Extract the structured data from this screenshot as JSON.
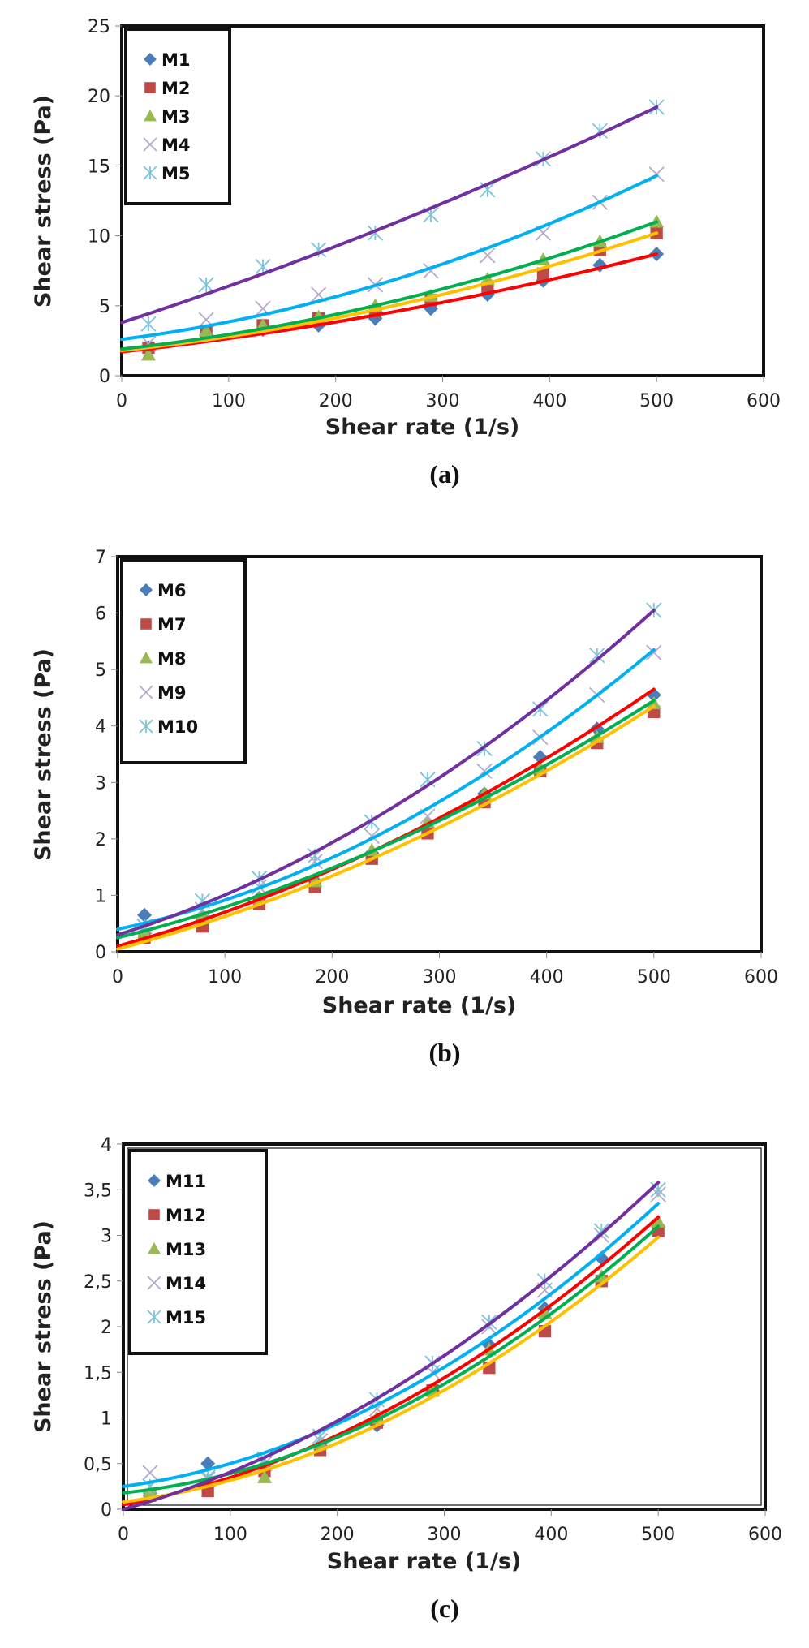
{
  "chart_data": [
    {
      "type": "scatter",
      "panel_label": "(a)",
      "xlabel": "Shear rate (1/s)",
      "ylabel": "Shear stress (Pa)",
      "xlim": [
        0,
        600
      ],
      "ylim": [
        0,
        25
      ],
      "xticks": [
        "0",
        "100",
        "200",
        "300",
        "400",
        "500",
        "600"
      ],
      "yticks": [
        "0",
        "5",
        "10",
        "15",
        "20",
        "25"
      ],
      "grid": false,
      "legend_position": "top-left",
      "x": [
        25,
        79,
        132,
        184,
        237,
        289,
        342,
        394,
        447,
        500
      ],
      "series": [
        {
          "name": "M1",
          "marker": "diamond",
          "color": "#4a7ebb",
          "fit_color": "#ff0000",
          "values": [
            2.0,
            2.9,
            3.3,
            3.6,
            4.1,
            4.8,
            5.8,
            6.8,
            7.9,
            8.7
          ],
          "fit": [
            1.7,
            8.7
          ]
        },
        {
          "name": "M2",
          "marker": "square",
          "color": "#be4b48",
          "fit_color": "#ffc000",
          "values": [
            2.0,
            3.1,
            3.6,
            4.1,
            4.6,
            5.4,
            6.3,
            7.3,
            9.0,
            10.2
          ],
          "fit": [
            1.8,
            10.2
          ]
        },
        {
          "name": "M3",
          "marker": "triangle",
          "color": "#98b954",
          "fit_color": "#00b050",
          "values": [
            1.5,
            3.2,
            3.6,
            4.2,
            5.0,
            5.7,
            6.9,
            8.3,
            9.6,
            11.0
          ],
          "fit": [
            1.9,
            11.0
          ]
        },
        {
          "name": "M4",
          "marker": "x",
          "color": "#b7a9cc",
          "fit_color": "#00b0f0",
          "values": [
            2.3,
            4.0,
            4.8,
            5.8,
            6.5,
            7.5,
            8.6,
            10.2,
            12.4,
            14.4
          ],
          "fit": [
            2.6,
            14.3
          ]
        },
        {
          "name": "M5",
          "marker": "asterisk",
          "color": "#7ec4d8",
          "fit_color": "#7030a0",
          "values": [
            3.7,
            6.5,
            7.8,
            9.0,
            10.2,
            11.5,
            13.3,
            15.5,
            17.5,
            19.2
          ],
          "fit": [
            3.8,
            19.2
          ]
        }
      ]
    },
    {
      "type": "scatter",
      "panel_label": "(b)",
      "xlabel": "Shear rate (1/s)",
      "ylabel": "Shear stress (Pa)",
      "xlim": [
        0,
        600
      ],
      "ylim": [
        0,
        7
      ],
      "xticks": [
        "0",
        "100",
        "200",
        "300",
        "400",
        "500",
        "600"
      ],
      "yticks": [
        "0",
        "1",
        "2",
        "3",
        "4",
        "5",
        "6",
        "7"
      ],
      "grid": false,
      "legend_position": "top-left",
      "x": [
        25,
        79,
        132,
        184,
        237,
        289,
        342,
        394,
        447,
        500
      ],
      "series": [
        {
          "name": "M6",
          "marker": "diamond",
          "color": "#4a7ebb",
          "fit_color": "#ff0000",
          "values": [
            0.65,
            0.6,
            0.95,
            1.25,
            1.75,
            2.2,
            2.8,
            3.45,
            3.95,
            4.55
          ],
          "fit": [
            0.1,
            4.65
          ]
        },
        {
          "name": "M7",
          "marker": "square",
          "color": "#be4b48",
          "fit_color": "#ffc000",
          "values": [
            0.25,
            0.45,
            0.85,
            1.15,
            1.65,
            2.1,
            2.65,
            3.2,
            3.7,
            4.25
          ],
          "fit": [
            0.05,
            4.35
          ]
        },
        {
          "name": "M8",
          "marker": "triangle",
          "color": "#98b954",
          "fit_color": "#00b050",
          "values": [
            0.35,
            0.65,
            0.95,
            1.25,
            1.8,
            2.3,
            2.8,
            3.25,
            3.8,
            4.4
          ],
          "fit": [
            0.25,
            4.45
          ]
        },
        {
          "name": "M9",
          "marker": "x",
          "color": "#b7a9cc",
          "fit_color": "#00b0f0",
          "values": [
            0.45,
            0.75,
            1.15,
            1.6,
            2.05,
            2.4,
            3.2,
            3.8,
            4.55,
            5.3
          ],
          "fit": [
            0.4,
            5.35
          ]
        },
        {
          "name": "M10",
          "marker": "asterisk",
          "color": "#7ec4d8",
          "fit_color": "#7030a0",
          "values": [
            0.45,
            0.9,
            1.3,
            1.7,
            2.3,
            3.05,
            3.6,
            4.3,
            5.25,
            6.05
          ],
          "fit": [
            0.3,
            6.05
          ]
        }
      ]
    },
    {
      "type": "scatter",
      "panel_label": "(c)",
      "xlabel": "Shear rate (1/s)",
      "ylabel": "Shear stress (Pa)",
      "xlim": [
        0,
        600
      ],
      "ylim": [
        0,
        4
      ],
      "xticks": [
        "0",
        "100",
        "200",
        "300",
        "400",
        "500",
        "600"
      ],
      "yticks": [
        "0",
        "0,5",
        "1",
        "1,5",
        "2",
        "2,5",
        "3",
        "3,5",
        "4"
      ],
      "grid": false,
      "legend_position": "top-left",
      "x": [
        25,
        79,
        132,
        184,
        237,
        289,
        342,
        394,
        447,
        500
      ],
      "series": [
        {
          "name": "M11",
          "marker": "diamond",
          "color": "#4a7ebb",
          "fit_color": "#ff0000",
          "values": [
            0.15,
            0.5,
            0.45,
            0.7,
            0.92,
            1.3,
            1.8,
            2.2,
            2.75,
            3.1
          ],
          "fit": [
            0.05,
            3.2
          ]
        },
        {
          "name": "M12",
          "marker": "square",
          "color": "#be4b48",
          "fit_color": "#ffc000",
          "values": [
            0.15,
            0.2,
            0.42,
            0.65,
            0.95,
            1.3,
            1.55,
            1.95,
            2.5,
            3.05
          ],
          "fit": [
            0.08,
            2.98
          ]
        },
        {
          "name": "M13",
          "marker": "triangle",
          "color": "#98b954",
          "fit_color": "#00b050",
          "values": [
            0.2,
            0.32,
            0.35,
            0.72,
            1.0,
            1.3,
            1.75,
            2.15,
            2.55,
            3.15
          ],
          "fit": [
            0.18,
            3.1
          ]
        },
        {
          "name": "M14",
          "marker": "x",
          "color": "#b7a9cc",
          "fit_color": "#00b0f0",
          "values": [
            0.4,
            0.33,
            0.5,
            0.75,
            1.1,
            1.5,
            2.0,
            2.4,
            3.0,
            3.45
          ],
          "fit": [
            0.25,
            3.35
          ]
        },
        {
          "name": "M15",
          "marker": "asterisk",
          "color": "#7ec4d8",
          "fit_color": "#7030a0",
          "values": [
            0.25,
            0.35,
            0.55,
            0.8,
            1.2,
            1.6,
            2.05,
            2.5,
            3.05,
            3.5
          ],
          "fit": [
            0.0,
            3.58
          ]
        }
      ]
    }
  ]
}
